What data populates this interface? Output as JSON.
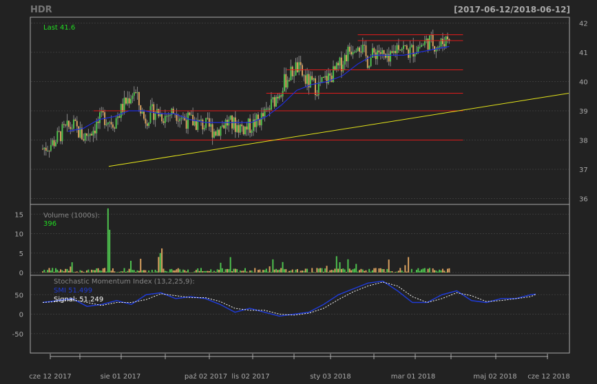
{
  "header": {
    "symbol": "HDR",
    "date_range": "[2017-06-12/2018-06-12]"
  },
  "colors": {
    "background": "#222222",
    "panel_border": "#aaaaaa",
    "grid": "#3b3b3b",
    "up": "#4ec24e",
    "down": "#d9a05f",
    "sma": "#1f2ddc",
    "support": "#e01b1b",
    "trend": "#e6e61a",
    "label_green": "#22dd22",
    "text": "#aaaaaa",
    "white": "#ffffff",
    "smi_line": "#1f3bd6",
    "signal_line": "#ffffff"
  },
  "chart_data": [
    {
      "type": "candlestick",
      "name": "price",
      "last_label": "Last 41.6",
      "ylim": [
        35.8,
        42.2
      ],
      "yticks": [
        "36",
        "37",
        "38",
        "39",
        "40",
        "41",
        "42"
      ],
      "close_path": [
        {
          "x": 0.0,
          "y": 37.7
        },
        {
          "x": 0.02,
          "y": 37.9
        },
        {
          "x": 0.04,
          "y": 38.3
        },
        {
          "x": 0.06,
          "y": 38.5
        },
        {
          "x": 0.08,
          "y": 38.1
        },
        {
          "x": 0.1,
          "y": 38.4
        },
        {
          "x": 0.12,
          "y": 38.8
        },
        {
          "x": 0.14,
          "y": 38.6
        },
        {
          "x": 0.16,
          "y": 39.2
        },
        {
          "x": 0.18,
          "y": 39.7
        },
        {
          "x": 0.2,
          "y": 38.7
        },
        {
          "x": 0.22,
          "y": 39.0
        },
        {
          "x": 0.24,
          "y": 38.8
        },
        {
          "x": 0.26,
          "y": 39.0
        },
        {
          "x": 0.28,
          "y": 38.7
        },
        {
          "x": 0.3,
          "y": 38.6
        },
        {
          "x": 0.32,
          "y": 38.5
        },
        {
          "x": 0.34,
          "y": 38.3
        },
        {
          "x": 0.36,
          "y": 38.6
        },
        {
          "x": 0.38,
          "y": 38.5
        },
        {
          "x": 0.4,
          "y": 38.4
        },
        {
          "x": 0.42,
          "y": 38.6
        },
        {
          "x": 0.44,
          "y": 38.9
        },
        {
          "x": 0.46,
          "y": 39.5
        },
        {
          "x": 0.48,
          "y": 40.1
        },
        {
          "x": 0.5,
          "y": 40.5
        },
        {
          "x": 0.52,
          "y": 40.0
        },
        {
          "x": 0.54,
          "y": 39.8
        },
        {
          "x": 0.56,
          "y": 40.1
        },
        {
          "x": 0.58,
          "y": 40.4
        },
        {
          "x": 0.6,
          "y": 41.0
        },
        {
          "x": 0.62,
          "y": 41.4
        },
        {
          "x": 0.64,
          "y": 40.7
        },
        {
          "x": 0.66,
          "y": 41.1
        },
        {
          "x": 0.68,
          "y": 40.6
        },
        {
          "x": 0.7,
          "y": 41.3
        },
        {
          "x": 0.72,
          "y": 41.0
        },
        {
          "x": 0.74,
          "y": 41.2
        },
        {
          "x": 0.76,
          "y": 41.4
        },
        {
          "x": 0.78,
          "y": 41.2
        },
        {
          "x": 0.8,
          "y": 41.6
        }
      ],
      "sma_path": [
        {
          "x": 0.05,
          "y": 38.3
        },
        {
          "x": 0.08,
          "y": 38.4
        },
        {
          "x": 0.11,
          "y": 38.7
        },
        {
          "x": 0.14,
          "y": 38.8
        },
        {
          "x": 0.17,
          "y": 39.0
        },
        {
          "x": 0.2,
          "y": 39.0
        },
        {
          "x": 0.23,
          "y": 38.9
        },
        {
          "x": 0.26,
          "y": 38.9
        },
        {
          "x": 0.29,
          "y": 38.7
        },
        {
          "x": 0.32,
          "y": 38.6
        },
        {
          "x": 0.35,
          "y": 38.6
        },
        {
          "x": 0.38,
          "y": 38.6
        },
        {
          "x": 0.41,
          "y": 38.6
        },
        {
          "x": 0.44,
          "y": 38.8
        },
        {
          "x": 0.47,
          "y": 39.2
        },
        {
          "x": 0.5,
          "y": 39.7
        },
        {
          "x": 0.53,
          "y": 39.9
        },
        {
          "x": 0.56,
          "y": 40.0
        },
        {
          "x": 0.59,
          "y": 40.2
        },
        {
          "x": 0.62,
          "y": 40.6
        },
        {
          "x": 0.65,
          "y": 40.9
        },
        {
          "x": 0.68,
          "y": 40.9
        },
        {
          "x": 0.71,
          "y": 40.9
        },
        {
          "x": 0.74,
          "y": 41.0
        },
        {
          "x": 0.77,
          "y": 41.1
        },
        {
          "x": 0.8,
          "y": 41.2
        }
      ],
      "support_lines": [
        {
          "y": 41.6,
          "x0": 0.62,
          "x1": 0.8
        },
        {
          "y": 41.4,
          "x0": 0.62,
          "x1": 0.8
        },
        {
          "y": 40.4,
          "x0": 0.48,
          "x1": 0.8
        },
        {
          "y": 39.6,
          "x0": 0.44,
          "x1": 0.8
        },
        {
          "y": 39.0,
          "x0": 0.1,
          "x1": 0.8
        },
        {
          "y": 38.0,
          "x0": 0.25,
          "x1": 0.8
        }
      ],
      "trend_line": {
        "x0": 0.13,
        "y0": 37.1,
        "x1": 1.0,
        "y1": 39.6
      }
    },
    {
      "type": "bar",
      "name": "volume",
      "title": "Volume (1000s):",
      "last_value": "396",
      "ylim": [
        0,
        17
      ],
      "yticks": [
        "0",
        "5",
        "10",
        "15"
      ]
    },
    {
      "type": "line",
      "name": "smi",
      "title": "Stochastic Momentum Index (13,2,25,9):",
      "smi_label": "SMI 51.499",
      "signal_label": "Signal: 51.249",
      "ylim": [
        -100,
        100
      ],
      "yticks": [
        "-50",
        "0",
        "50"
      ],
      "smi_path": [
        {
          "x": 0.0,
          "y": 30
        },
        {
          "x": 0.03,
          "y": 35
        },
        {
          "x": 0.06,
          "y": 40
        },
        {
          "x": 0.09,
          "y": 20
        },
        {
          "x": 0.12,
          "y": 25
        },
        {
          "x": 0.15,
          "y": 35
        },
        {
          "x": 0.18,
          "y": 25
        },
        {
          "x": 0.21,
          "y": 50
        },
        {
          "x": 0.24,
          "y": 55
        },
        {
          "x": 0.27,
          "y": 40
        },
        {
          "x": 0.3,
          "y": 45
        },
        {
          "x": 0.33,
          "y": 40
        },
        {
          "x": 0.36,
          "y": 25
        },
        {
          "x": 0.39,
          "y": 5
        },
        {
          "x": 0.42,
          "y": 15
        },
        {
          "x": 0.45,
          "y": 5
        },
        {
          "x": 0.48,
          "y": -5
        },
        {
          "x": 0.51,
          "y": 0
        },
        {
          "x": 0.54,
          "y": 5
        },
        {
          "x": 0.57,
          "y": 25
        },
        {
          "x": 0.6,
          "y": 50
        },
        {
          "x": 0.63,
          "y": 65
        },
        {
          "x": 0.66,
          "y": 80
        },
        {
          "x": 0.69,
          "y": 85
        },
        {
          "x": 0.72,
          "y": 60
        },
        {
          "x": 0.75,
          "y": 30
        },
        {
          "x": 0.78,
          "y": 30
        },
        {
          "x": 0.81,
          "y": 50
        },
        {
          "x": 0.84,
          "y": 60
        },
        {
          "x": 0.87,
          "y": 35
        },
        {
          "x": 0.9,
          "y": 30
        },
        {
          "x": 0.93,
          "y": 40
        },
        {
          "x": 0.96,
          "y": 40
        },
        {
          "x": 0.99,
          "y": 50
        },
        {
          "x": 1.0,
          "y": 51.5
        }
      ]
    }
  ],
  "x_axis": {
    "ticks": [
      "cze 12 2017",
      "sie 01 2017",
      "paź 02 2017",
      "lis 02 2017",
      "sty 03 2018",
      "mar 01 2018",
      "maj 02 2018",
      "cze 12 2018"
    ]
  }
}
